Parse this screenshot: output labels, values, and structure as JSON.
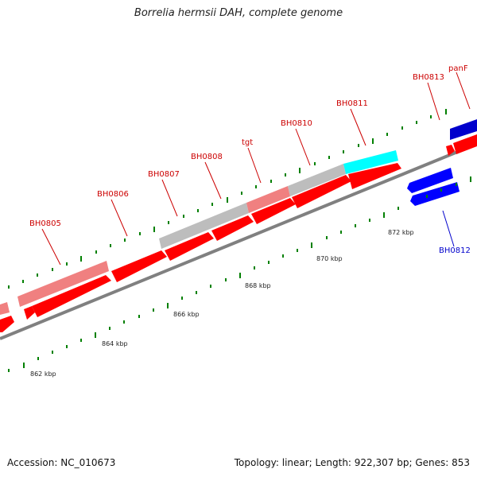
{
  "title": "Borrelia hermsii DAH, complete genome",
  "footer": {
    "accession": "Accession: NC_010673",
    "summary": "Topology: linear; Length: 922,307 bp; Genes: 853"
  },
  "colors": {
    "cds_forward": "#ff0000",
    "cds_reverse": "#0000ff",
    "pseudo_light": "#f08080",
    "gray_feature": "#bdbdbd",
    "rna_cyan": "#00ffff",
    "backbone": "#808080",
    "tick_green": "#008000",
    "label_red": "#cc0000",
    "label_blue": "#0000cc"
  },
  "axis_labels": [
    "862 kbp",
    "864 kbp",
    "866 kbp",
    "868 kbp",
    "870 kbp",
    "872 kbp"
  ],
  "gene_labels": [
    {
      "text": "BH0805",
      "strand": "forward"
    },
    {
      "text": "BH0806",
      "strand": "forward"
    },
    {
      "text": "BH0807",
      "strand": "forward"
    },
    {
      "text": "BH0808",
      "strand": "forward"
    },
    {
      "text": "tgt",
      "strand": "forward"
    },
    {
      "text": "BH0810",
      "strand": "forward"
    },
    {
      "text": "BH0811",
      "strand": "forward"
    },
    {
      "text": "BH0813",
      "strand": "forward"
    },
    {
      "text": "panF",
      "strand": "forward"
    },
    {
      "text": "BH0812",
      "strand": "reverse"
    }
  ]
}
